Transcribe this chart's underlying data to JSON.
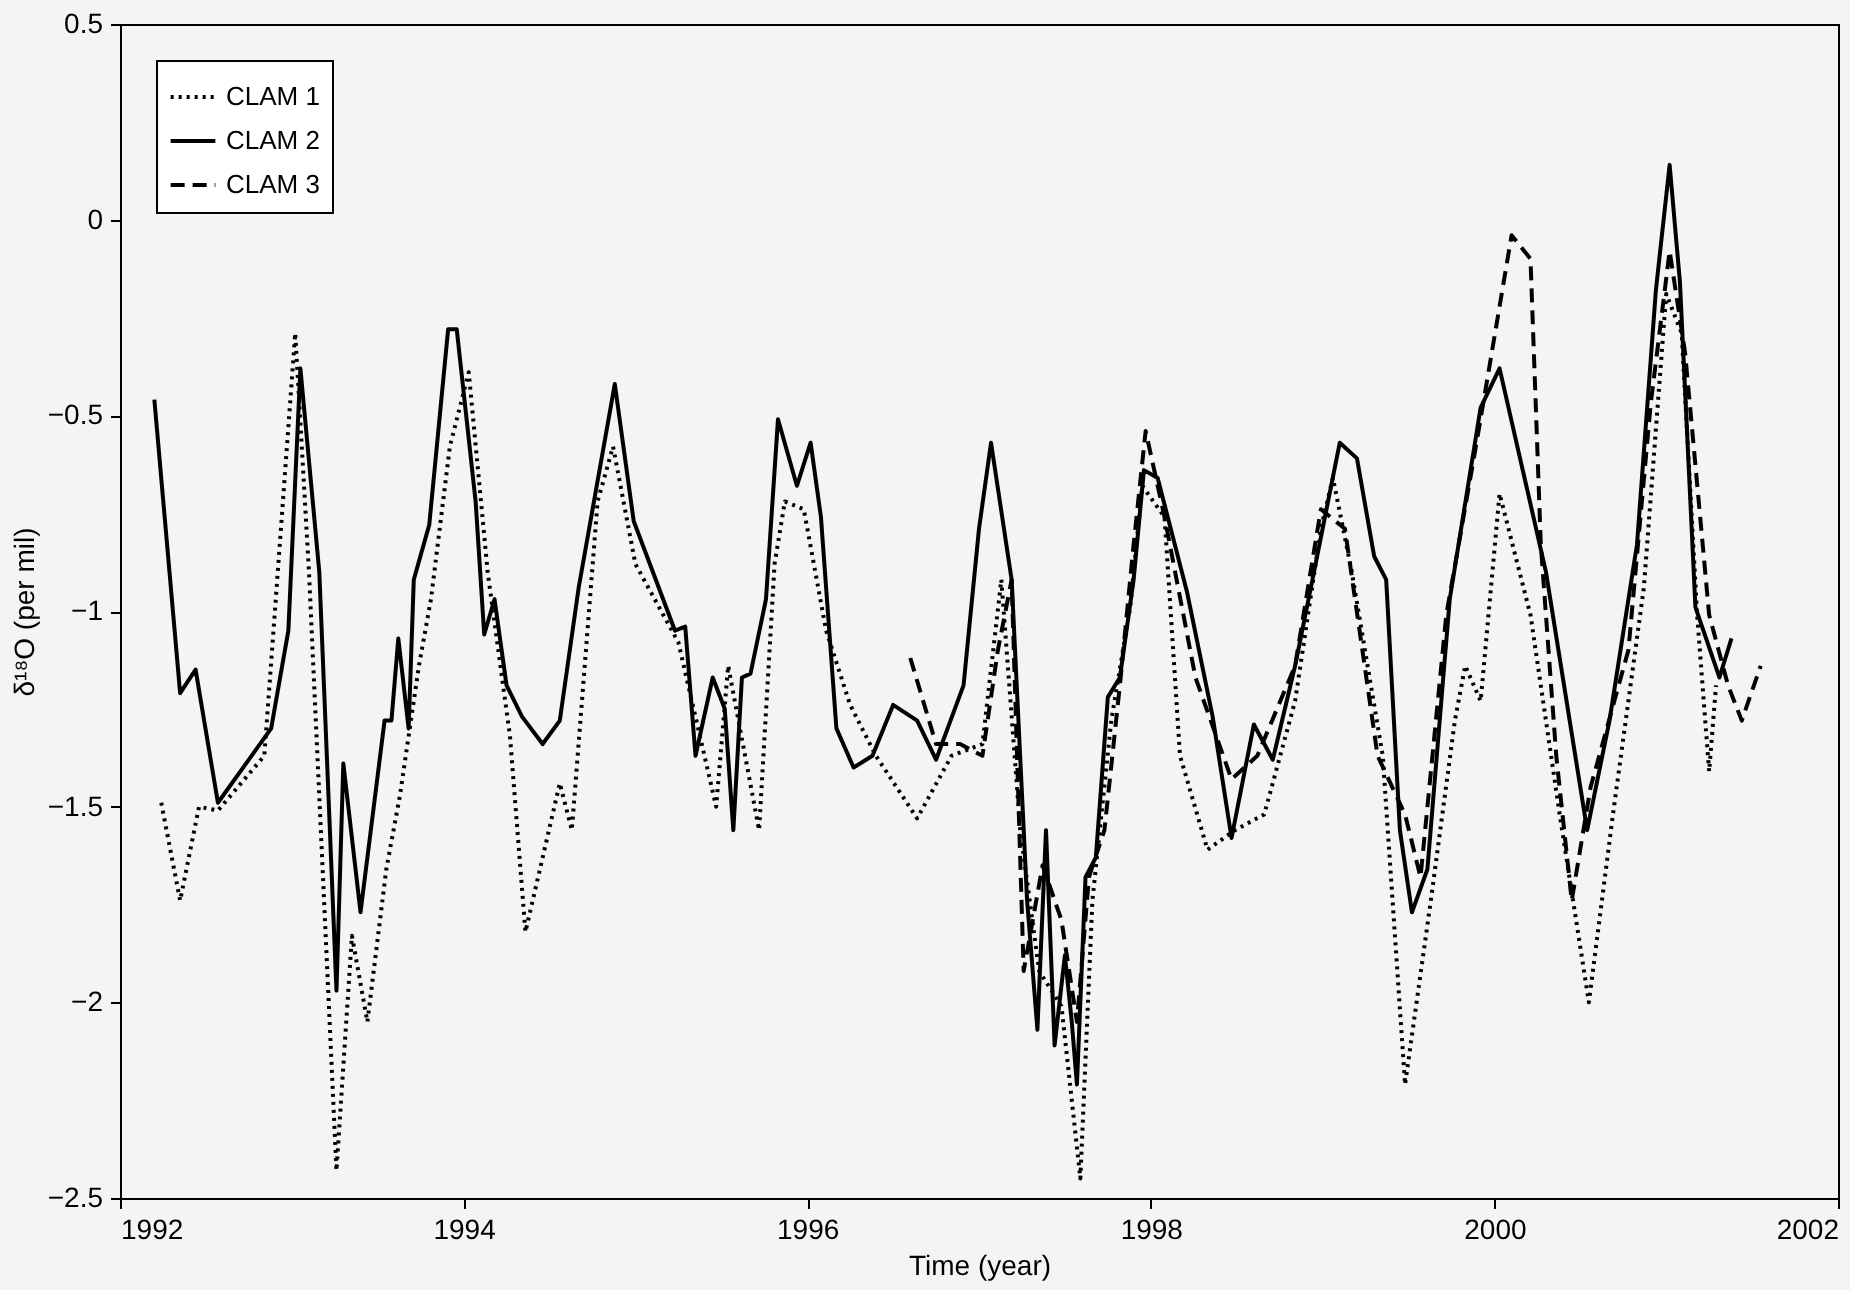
{
  "chart_data": {
    "type": "line",
    "xlabel": "Time (year)",
    "ylabel": "δ¹⁸O (per mil)",
    "xlim": [
      1992,
      2002
    ],
    "xticks": [
      1992,
      1994,
      1996,
      1998,
      2000,
      2002
    ],
    "ylim": [
      -2.5,
      0.5
    ],
    "yticks": [
      -2.5,
      -2,
      -1.5,
      -1,
      -0.5,
      0,
      0.5
    ],
    "grid": false,
    "legend": "top left",
    "marker": "none",
    "series": [
      {
        "name": "CLAM 1",
        "color": "#000000",
        "line_style": "dotted",
        "x": [
          1992.24,
          1992.35,
          1992.46,
          1992.57,
          1992.84,
          1993.02,
          1993.1,
          1993.26,
          1993.35,
          1993.44,
          1993.55,
          1993.63,
          1993.74,
          1993.81,
          1993.92,
          1994.03,
          1994.14,
          1994.27,
          1994.36,
          1994.56,
          1994.63,
          1994.78,
          1994.87,
          1995.0,
          1995.25,
          1995.47,
          1995.54,
          1995.72,
          1995.81,
          1995.87,
          1995.98,
          1996.11,
          1996.25,
          1996.4,
          1996.64,
          1996.84,
          1997.02,
          1997.13,
          1997.24,
          1997.35,
          1997.48,
          1997.59,
          1997.66,
          1997.77,
          1997.88,
          1997.95,
          1998.08,
          1998.17,
          1998.33,
          1998.49,
          1998.66,
          1998.84,
          1998.99,
          1999.06,
          1999.17,
          1999.35,
          1999.48,
          1999.63,
          1999.77,
          1999.83,
          1999.92,
          2000.03,
          2000.21,
          2000.38,
          2000.55,
          2000.69,
          2000.87,
          2001.0,
          2001.09,
          2001.18,
          2001.25,
          2001.29
        ],
        "values": [
          -1.49,
          -1.74,
          -1.5,
          -1.51,
          -1.37,
          -0.29,
          -0.9,
          -2.43,
          -1.83,
          -2.05,
          -1.66,
          -1.47,
          -1.14,
          -0.97,
          -0.58,
          -0.39,
          -0.9,
          -1.32,
          -1.82,
          -1.44,
          -1.56,
          -0.72,
          -0.58,
          -0.88,
          -1.08,
          -1.5,
          -1.14,
          -1.56,
          -0.88,
          -0.72,
          -0.74,
          -1.05,
          -1.24,
          -1.37,
          -1.53,
          -1.37,
          -1.34,
          -0.92,
          -1.56,
          -1.92,
          -2.01,
          -2.45,
          -1.74,
          -1.28,
          -0.99,
          -0.68,
          -0.76,
          -1.37,
          -1.61,
          -1.56,
          -1.52,
          -1.23,
          -0.79,
          -0.66,
          -0.9,
          -1.37,
          -2.21,
          -1.74,
          -1.28,
          -1.14,
          -1.23,
          -0.7,
          -1.01,
          -1.52,
          -2.0,
          -1.52,
          -0.94,
          -0.19,
          -0.29,
          -1.01,
          -1.41,
          -1.19
        ]
      },
      {
        "name": "CLAM 2",
        "color": "#000000",
        "line_style": "solid",
        "x": [
          1992.2,
          1992.35,
          1992.44,
          1992.57,
          1992.88,
          1992.98,
          1993.05,
          1993.16,
          1993.26,
          1993.3,
          1993.4,
          1993.54,
          1993.58,
          1993.62,
          1993.68,
          1993.71,
          1993.8,
          1993.91,
          1993.96,
          1994.07,
          1994.12,
          1994.18,
          1994.25,
          1994.34,
          1994.46,
          1994.56,
          1994.67,
          1994.88,
          1994.99,
          1995.23,
          1995.29,
          1995.35,
          1995.45,
          1995.52,
          1995.57,
          1995.62,
          1995.67,
          1995.76,
          1995.83,
          1995.94,
          1996.02,
          1996.08,
          1996.17,
          1996.27,
          1996.38,
          1996.5,
          1996.64,
          1996.75,
          1996.91,
          1997.0,
          1997.07,
          1997.19,
          1997.28,
          1997.34,
          1997.39,
          1997.44,
          1997.5,
          1997.54,
          1997.57,
          1997.62,
          1997.68,
          1997.75,
          1997.82,
          1997.9,
          1997.96,
          1998.04,
          1998.21,
          1998.36,
          1998.47,
          1998.6,
          1998.71,
          1998.84,
          1998.95,
          1999.1,
          1999.2,
          1999.3,
          1999.37,
          1999.45,
          1999.52,
          1999.61,
          1999.74,
          1999.92,
          2000.03,
          2000.3,
          2000.54,
          2000.67,
          2000.83,
          2000.94,
          2001.02,
          2001.08,
          2001.17,
          2001.31,
          2001.38
        ],
        "values": [
          -0.46,
          -1.21,
          -1.15,
          -1.49,
          -1.3,
          -1.05,
          -0.38,
          -0.9,
          -1.97,
          -1.39,
          -1.77,
          -1.28,
          -1.28,
          -1.07,
          -1.3,
          -0.92,
          -0.78,
          -0.28,
          -0.28,
          -0.72,
          -1.06,
          -0.97,
          -1.19,
          -1.27,
          -1.34,
          -1.28,
          -0.94,
          -0.42,
          -0.77,
          -1.05,
          -1.04,
          -1.37,
          -1.17,
          -1.25,
          -1.56,
          -1.17,
          -1.16,
          -0.97,
          -0.51,
          -0.68,
          -0.57,
          -0.76,
          -1.3,
          -1.4,
          -1.37,
          -1.24,
          -1.28,
          -1.38,
          -1.19,
          -0.79,
          -0.57,
          -0.92,
          -1.74,
          -2.07,
          -1.56,
          -2.11,
          -1.88,
          -2.05,
          -2.21,
          -1.68,
          -1.63,
          -1.22,
          -1.17,
          -0.92,
          -0.64,
          -0.66,
          -0.95,
          -1.27,
          -1.58,
          -1.29,
          -1.38,
          -1.14,
          -0.9,
          -0.57,
          -0.61,
          -0.86,
          -0.92,
          -1.56,
          -1.77,
          -1.66,
          -0.97,
          -0.48,
          -0.38,
          -0.9,
          -1.56,
          -1.28,
          -0.83,
          -0.18,
          0.14,
          -0.16,
          -0.99,
          -1.17,
          -1.07
        ]
      },
      {
        "name": "CLAM 3",
        "color": "#000000",
        "line_style": "dashed",
        "x": [
          1996.6,
          1996.75,
          1996.89,
          1997.02,
          1997.11,
          1997.19,
          1997.26,
          1997.37,
          1997.48,
          1997.57,
          1997.64,
          1997.73,
          1997.82,
          1997.9,
          1997.97,
          1998.08,
          1998.26,
          1998.47,
          1998.62,
          1998.84,
          1998.99,
          1999.13,
          1999.32,
          1999.48,
          1999.57,
          1999.72,
          1999.9,
          2000.1,
          2000.21,
          2000.27,
          2000.36,
          2000.45,
          2000.56,
          2000.78,
          2000.91,
          2001.02,
          2001.11,
          2001.25,
          2001.36,
          2001.44,
          2001.55
        ],
        "values": [
          -1.12,
          -1.34,
          -1.34,
          -1.37,
          -1.1,
          -0.92,
          -1.92,
          -1.65,
          -1.79,
          -2.05,
          -1.68,
          -1.56,
          -1.19,
          -0.83,
          -0.54,
          -0.76,
          -1.17,
          -1.43,
          -1.37,
          -1.14,
          -0.74,
          -0.79,
          -1.37,
          -1.52,
          -1.68,
          -1.01,
          -0.56,
          -0.04,
          -0.1,
          -0.83,
          -1.37,
          -1.74,
          -1.45,
          -1.1,
          -0.47,
          -0.08,
          -0.34,
          -1.01,
          -1.19,
          -1.28,
          -1.14
        ]
      }
    ]
  }
}
